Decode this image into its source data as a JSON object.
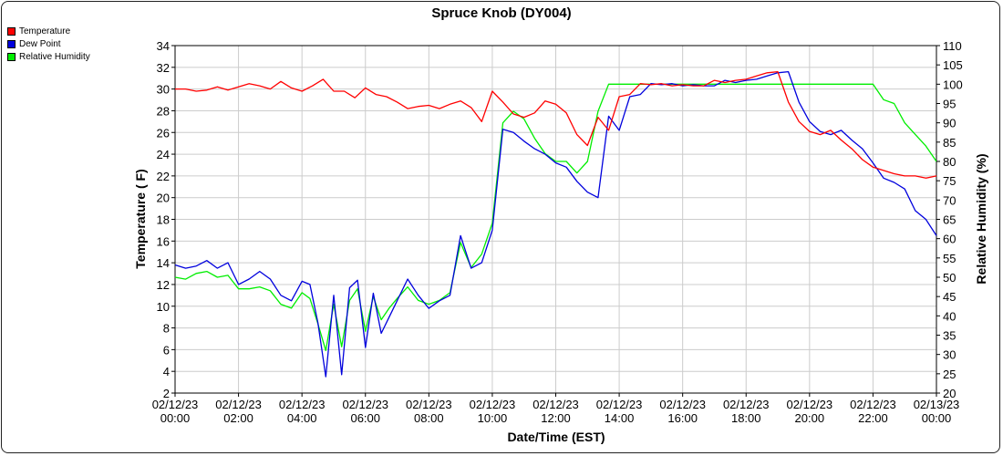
{
  "chart_data": {
    "type": "line",
    "title": "Spruce Knob (DY004)",
    "xlabel": "Date/Time (EST)",
    "ylabel": "Temperature ( F)",
    "y2label": "Relative Humidity (%)",
    "ylim": [
      2,
      34
    ],
    "y2lim": [
      20,
      110
    ],
    "xlim": [
      "02/12/23 00:00",
      "02/13/23 00:00"
    ],
    "x_ticks": [
      {
        "date": "02/12/23",
        "time": "00:00"
      },
      {
        "date": "02/12/23",
        "time": "02:00"
      },
      {
        "date": "02/12/23",
        "time": "04:00"
      },
      {
        "date": "02/12/23",
        "time": "06:00"
      },
      {
        "date": "02/12/23",
        "time": "08:00"
      },
      {
        "date": "02/12/23",
        "time": "10:00"
      },
      {
        "date": "02/12/23",
        "time": "12:00"
      },
      {
        "date": "02/12/23",
        "time": "14:00"
      },
      {
        "date": "02/12/23",
        "time": "16:00"
      },
      {
        "date": "02/12/23",
        "time": "18:00"
      },
      {
        "date": "02/12/23",
        "time": "20:00"
      },
      {
        "date": "02/12/23",
        "time": "22:00"
      },
      {
        "date": "02/13/23",
        "time": "00:00"
      }
    ],
    "y_ticks": [
      2,
      4,
      6,
      8,
      10,
      12,
      14,
      16,
      18,
      20,
      22,
      24,
      26,
      28,
      30,
      32,
      34
    ],
    "y2_ticks": [
      20,
      25,
      30,
      35,
      40,
      45,
      50,
      55,
      60,
      65,
      70,
      75,
      80,
      85,
      90,
      95,
      100,
      105,
      110
    ],
    "grid": true,
    "legend": "top-left",
    "series": [
      {
        "name": "Temperature",
        "color": "#ff0000",
        "axis": "left",
        "x": [
          "02/12/23 00:00",
          "02/12/23 00:20",
          "02/12/23 00:40",
          "02/12/23 01:00",
          "02/12/23 01:20",
          "02/12/23 01:40",
          "02/12/23 02:00",
          "02/12/23 02:20",
          "02/12/23 02:40",
          "02/12/23 03:00",
          "02/12/23 03:20",
          "02/12/23 03:40",
          "02/12/23 04:00",
          "02/12/23 04:20",
          "02/12/23 04:40",
          "02/12/23 05:00",
          "02/12/23 05:20",
          "02/12/23 05:40",
          "02/12/23 06:00",
          "02/12/23 06:20",
          "02/12/23 06:40",
          "02/12/23 07:00",
          "02/12/23 07:20",
          "02/12/23 07:40",
          "02/12/23 08:00",
          "02/12/23 08:20",
          "02/12/23 08:40",
          "02/12/23 09:00",
          "02/12/23 09:20",
          "02/12/23 09:40",
          "02/12/23 10:00",
          "02/12/23 10:20",
          "02/12/23 10:40",
          "02/12/23 11:00",
          "02/12/23 11:20",
          "02/12/23 11:40",
          "02/12/23 12:00",
          "02/12/23 12:20",
          "02/12/23 12:40",
          "02/12/23 13:00",
          "02/12/23 13:20",
          "02/12/23 13:40",
          "02/12/23 14:00",
          "02/12/23 14:20",
          "02/12/23 14:40",
          "02/12/23 15:00",
          "02/12/23 15:20",
          "02/12/23 15:40",
          "02/12/23 16:00",
          "02/12/23 16:20",
          "02/12/23 16:40",
          "02/12/23 17:00",
          "02/12/23 17:20",
          "02/12/23 17:40",
          "02/12/23 18:00",
          "02/12/23 18:20",
          "02/12/23 18:40",
          "02/12/23 19:00",
          "02/12/23 19:20",
          "02/12/23 19:40",
          "02/12/23 20:00",
          "02/12/23 20:20",
          "02/12/23 20:40",
          "02/12/23 21:00",
          "02/12/23 21:20",
          "02/12/23 21:40",
          "02/12/23 22:00",
          "02/12/23 22:20",
          "02/12/23 22:40",
          "02/12/23 23:00",
          "02/12/23 23:20",
          "02/12/23 23:40",
          "02/13/23 00:00"
        ],
        "values": [
          30.0,
          30.0,
          29.8,
          29.9,
          30.2,
          29.9,
          30.2,
          30.5,
          30.3,
          30.0,
          30.7,
          30.1,
          29.8,
          30.3,
          30.9,
          29.8,
          29.8,
          29.2,
          30.1,
          29.5,
          29.3,
          28.8,
          28.2,
          28.4,
          28.5,
          28.2,
          28.6,
          28.9,
          28.3,
          27.0,
          29.8,
          28.8,
          27.7,
          27.4,
          27.8,
          28.9,
          28.6,
          27.8,
          25.8,
          24.8,
          27.4,
          26.2,
          29.3,
          29.5,
          30.5,
          30.4,
          30.5,
          30.3,
          30.4,
          30.3,
          30.3,
          30.8,
          30.6,
          30.8,
          30.9,
          31.2,
          31.5,
          31.6,
          28.8,
          27.0,
          26.1,
          25.8,
          26.2,
          25.3,
          24.5,
          23.5,
          22.8,
          22.5,
          22.2,
          22.0,
          22.0,
          21.8,
          22.0
        ]
      },
      {
        "name": "Dew Point",
        "color": "#0000dd",
        "axis": "left",
        "x": [
          "02/12/23 00:00",
          "02/12/23 00:20",
          "02/12/23 00:40",
          "02/12/23 01:00",
          "02/12/23 01:20",
          "02/12/23 01:40",
          "02/12/23 02:00",
          "02/12/23 02:20",
          "02/12/23 02:40",
          "02/12/23 03:00",
          "02/12/23 03:20",
          "02/12/23 03:40",
          "02/12/23 04:00",
          "02/12/23 04:15",
          "02/12/23 04:30",
          "02/12/23 04:45",
          "02/12/23 05:00",
          "02/12/23 05:15",
          "02/12/23 05:30",
          "02/12/23 05:45",
          "02/12/23 06:00",
          "02/12/23 06:15",
          "02/12/23 06:30",
          "02/12/23 06:45",
          "02/12/23 07:00",
          "02/12/23 07:20",
          "02/12/23 07:40",
          "02/12/23 08:00",
          "02/12/23 08:20",
          "02/12/23 08:40",
          "02/12/23 09:00",
          "02/12/23 09:20",
          "02/12/23 09:40",
          "02/12/23 10:00",
          "02/12/23 10:20",
          "02/12/23 10:40",
          "02/12/23 11:00",
          "02/12/23 11:20",
          "02/12/23 11:40",
          "02/12/23 12:00",
          "02/12/23 12:20",
          "02/12/23 12:40",
          "02/12/23 13:00",
          "02/12/23 13:20",
          "02/12/23 13:40",
          "02/12/23 14:00",
          "02/12/23 14:20",
          "02/12/23 14:40",
          "02/12/23 15:00",
          "02/12/23 15:20",
          "02/12/23 15:40",
          "02/12/23 16:00",
          "02/12/23 16:20",
          "02/12/23 16:40",
          "02/12/23 17:00",
          "02/12/23 17:20",
          "02/12/23 17:40",
          "02/12/23 18:00",
          "02/12/23 18:20",
          "02/12/23 18:40",
          "02/12/23 19:00",
          "02/12/23 19:20",
          "02/12/23 19:40",
          "02/12/23 20:00",
          "02/12/23 20:20",
          "02/12/23 20:40",
          "02/12/23 21:00",
          "02/12/23 21:20",
          "02/12/23 21:40",
          "02/12/23 22:00",
          "02/12/23 22:20",
          "02/12/23 22:40",
          "02/12/23 23:00",
          "02/12/23 23:20",
          "02/12/23 23:40",
          "02/13/23 00:00"
        ],
        "values": [
          13.8,
          13.5,
          13.7,
          14.2,
          13.5,
          14.0,
          12.0,
          12.5,
          13.2,
          12.5,
          11.0,
          10.5,
          12.3,
          12.0,
          8.5,
          3.5,
          11.0,
          3.7,
          11.7,
          12.4,
          6.2,
          11.2,
          7.5,
          9.0,
          10.5,
          12.5,
          11.0,
          9.8,
          10.5,
          11.0,
          16.5,
          13.5,
          14.0,
          17.0,
          26.3,
          26.0,
          25.2,
          24.5,
          24.0,
          23.2,
          22.8,
          21.5,
          20.5,
          20.0,
          27.5,
          26.2,
          29.3,
          29.5,
          30.5,
          30.4,
          30.5,
          30.3,
          30.4,
          30.3,
          30.3,
          30.8,
          30.6,
          30.8,
          30.9,
          31.2,
          31.5,
          31.6,
          28.8,
          27.0,
          26.1,
          25.8,
          26.2,
          25.3,
          24.5,
          23.2,
          21.8,
          21.4,
          20.8,
          18.8,
          18.0,
          16.5
        ]
      },
      {
        "name": "Relative Humidity",
        "color": "#00ee00",
        "axis": "right",
        "x": [
          "02/12/23 00:00",
          "02/12/23 00:20",
          "02/12/23 00:40",
          "02/12/23 01:00",
          "02/12/23 01:20",
          "02/12/23 01:40",
          "02/12/23 02:00",
          "02/12/23 02:20",
          "02/12/23 02:40",
          "02/12/23 03:00",
          "02/12/23 03:20",
          "02/12/23 03:40",
          "02/12/23 04:00",
          "02/12/23 04:15",
          "02/12/23 04:30",
          "02/12/23 04:45",
          "02/12/23 05:00",
          "02/12/23 05:15",
          "02/12/23 05:30",
          "02/12/23 05:45",
          "02/12/23 06:00",
          "02/12/23 06:15",
          "02/12/23 06:30",
          "02/12/23 06:45",
          "02/12/23 07:00",
          "02/12/23 07:20",
          "02/12/23 07:40",
          "02/12/23 08:00",
          "02/12/23 08:20",
          "02/12/23 08:40",
          "02/12/23 09:00",
          "02/12/23 09:20",
          "02/12/23 09:40",
          "02/12/23 10:00",
          "02/12/23 10:20",
          "02/12/23 10:40",
          "02/12/23 11:00",
          "02/12/23 11:20",
          "02/12/23 11:40",
          "02/12/23 12:00",
          "02/12/23 12:20",
          "02/12/23 12:40",
          "02/12/23 13:00",
          "02/12/23 13:20",
          "02/12/23 13:40",
          "02/12/23 14:00",
          "02/12/23 16:00",
          "02/12/23 18:00",
          "02/12/23 20:00",
          "02/12/23 22:00",
          "02/12/23 22:20",
          "02/12/23 22:40",
          "02/12/23 23:00",
          "02/12/23 23:20",
          "02/12/23 23:40",
          "02/13/23 00:00"
        ],
        "values": [
          50,
          49.5,
          51,
          51.5,
          50,
          50.5,
          47,
          47,
          47.5,
          46.5,
          43,
          42,
          46,
          44.5,
          38,
          31,
          43,
          32,
          44,
          47,
          36,
          45,
          39,
          42,
          44.5,
          47.5,
          44,
          43,
          44,
          46,
          59,
          52.5,
          56,
          64,
          90,
          93,
          91,
          86,
          82,
          80,
          80,
          77,
          80,
          93,
          100,
          100,
          100,
          100,
          100,
          100,
          96,
          95,
          90,
          87,
          84,
          80
        ]
      }
    ]
  },
  "legend_items": [
    {
      "label": "Temperature",
      "color": "#ff0000"
    },
    {
      "label": "Dew Point",
      "color": "#0000dd"
    },
    {
      "label": "Relative Humidity",
      "color": "#00ee00"
    }
  ]
}
